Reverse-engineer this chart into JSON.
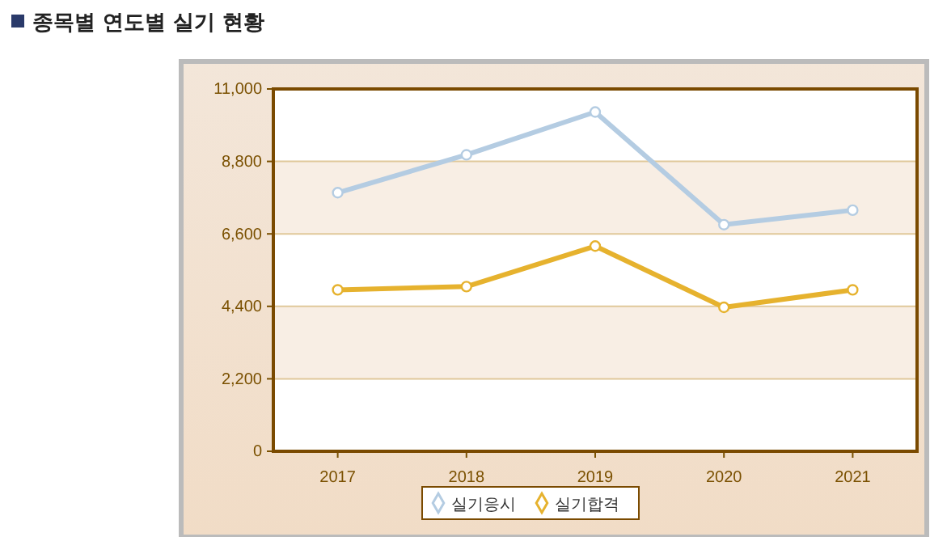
{
  "chart_data": {
    "type": "line",
    "title": "종목별 연도별 실기 현황",
    "categories": [
      "2017",
      "2018",
      "2019",
      "2020",
      "2021"
    ],
    "series": [
      {
        "name": "실기응시",
        "color": "#b4cce2",
        "values": [
          7850,
          9000,
          10300,
          6880,
          7320
        ]
      },
      {
        "name": "실기합격",
        "color": "#e6b22e",
        "values": [
          4900,
          5000,
          6230,
          4370,
          4900
        ]
      }
    ],
    "ylim": [
      0,
      11000
    ],
    "yticks": [
      0,
      {
        "value": 2200,
        "label": "2,200"
      },
      {
        "value": 4400,
        "label": "4,400"
      },
      {
        "value": 6600,
        "label": "6,600"
      },
      {
        "value": 8800,
        "label": "8,800"
      },
      {
        "value": 11000,
        "label": "11,000"
      }
    ],
    "grid": "y",
    "legend": "bottom",
    "marker": "circle",
    "line_style": "solid"
  }
}
